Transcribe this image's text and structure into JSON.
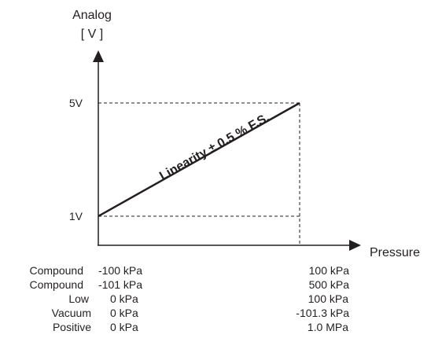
{
  "chart_data": {
    "type": "line",
    "ylabel": "Analog",
    "ylabel_unit": "[ V ]",
    "xlabel": "Pressure",
    "ytick_labels": [
      "1V",
      "5V"
    ],
    "yrange": [
      1,
      5
    ],
    "x_range_fraction": [
      0,
      1
    ],
    "series": [
      {
        "x": [
          0,
          1
        ],
        "y": [
          1,
          5
        ]
      }
    ],
    "annotation": "Linearity ± 0.5 % F.S.",
    "pressure_rows": [
      {
        "label": "Compound",
        "min": "-100 kPa",
        "max": "100 kPa"
      },
      {
        "label": "Compound",
        "min": "-101 kPa",
        "max": "500 kPa"
      },
      {
        "label": "Low",
        "min": "0 kPa",
        "max": "100 kPa"
      },
      {
        "label": "Vacuum",
        "min": "0 kPa",
        "max": "-101.3 kPa"
      },
      {
        "label": "Positive",
        "min": "0 kPa",
        "max": "1.0 MPa"
      }
    ],
    "colors": {
      "line": "#231f20",
      "axis": "#231f20",
      "guide": "#231f20"
    }
  }
}
